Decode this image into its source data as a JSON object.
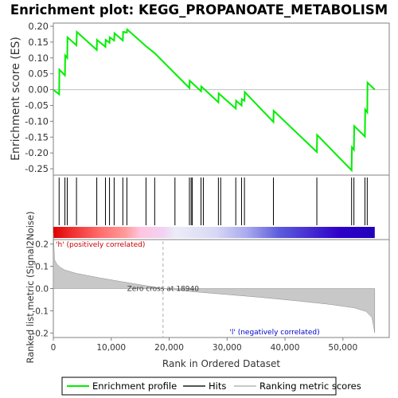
{
  "chart_data": {
    "type": "line",
    "title": "Enrichment plot: KEGG_PROPANOATE_METABOLISM",
    "top_panel": {
      "ylabel": "Enrichment score (ES)",
      "ylim": [
        -0.27,
        0.21
      ],
      "yticks": [
        -0.25,
        -0.2,
        -0.15,
        -0.1,
        -0.05,
        0.0,
        0.05,
        0.1,
        0.15,
        0.2
      ],
      "ytick_labels": [
        "-0.25",
        "-0.20",
        "-0.15",
        "-0.10",
        "-0.05",
        "0.00",
        "0.05",
        "0.10",
        "0.15",
        "0.20"
      ],
      "series": [
        {
          "name": "Enrichment profile",
          "color": "#00ee00",
          "x": [
            0,
            1000,
            1050,
            2000,
            2050,
            2400,
            2450,
            4000,
            4050,
            7500,
            7550,
            9000,
            9050,
            9700,
            9750,
            10500,
            10550,
            12000,
            12050,
            12700,
            12750,
            16000,
            17500,
            23500,
            23550,
            25500,
            25550,
            28500,
            28550,
            31500,
            31550,
            32500,
            32550,
            33000,
            33050,
            38000,
            38050,
            45500,
            45550,
            51500,
            51550,
            51900,
            51950,
            53800,
            53850,
            54200,
            54250,
            55500
          ],
          "y": [
            0.0,
            -0.015,
            0.063,
            0.045,
            0.108,
            0.1,
            0.165,
            0.14,
            0.182,
            0.125,
            0.157,
            0.135,
            0.157,
            0.148,
            0.165,
            0.155,
            0.178,
            0.155,
            0.182,
            0.18,
            0.19,
            0.137,
            0.115,
            0.005,
            0.028,
            -0.005,
            0.01,
            -0.04,
            -0.012,
            -0.06,
            -0.035,
            -0.05,
            -0.03,
            -0.035,
            -0.008,
            -0.102,
            -0.067,
            -0.197,
            -0.143,
            -0.255,
            -0.182,
            -0.19,
            -0.115,
            -0.148,
            -0.063,
            -0.072,
            0.022,
            0.0
          ]
        }
      ]
    },
    "hits": {
      "name": "Hits",
      "x": [
        1000,
        2000,
        2400,
        4000,
        7500,
        9000,
        9700,
        10500,
        12000,
        12700,
        16000,
        17500,
        21000,
        23500,
        23800,
        24000,
        25500,
        25900,
        28500,
        28900,
        31500,
        32500,
        33000,
        38000,
        45500,
        51500,
        51900,
        53800,
        54200
      ]
    },
    "color_bar": {
      "stops": [
        {
          "x": 0,
          "color": "#dd0000"
        },
        {
          "x": 2800,
          "color": "#ee2a2a"
        },
        {
          "x": 8000,
          "color": "#ff6b6b"
        },
        {
          "x": 12500,
          "color": "#ff9b9b"
        },
        {
          "x": 15000,
          "color": "#ffc4e0"
        },
        {
          "x": 19000,
          "color": "#f2d2f2"
        },
        {
          "x": 21000,
          "color": "#ececf8"
        },
        {
          "x": 28000,
          "color": "#d8d8f6"
        },
        {
          "x": 33500,
          "color": "#a8a8ee"
        },
        {
          "x": 39000,
          "color": "#5c5cdc"
        },
        {
          "x": 49500,
          "color": "#2e00c8"
        },
        {
          "x": 55500,
          "color": "#2200bb"
        }
      ]
    },
    "bottom_panel": {
      "ylabel": "Ranked list metric (Signal2Noise)",
      "xlabel": "Rank in Ordered Dataset",
      "ylim": [
        -0.22,
        0.22
      ],
      "yticks": [
        -0.2,
        -0.1,
        0.0,
        0.1,
        0.2
      ],
      "ytick_labels": [
        "-0.2",
        "-0.1",
        "0.0",
        "0.1",
        "0.2"
      ],
      "xlim": [
        0,
        58000
      ],
      "xticks": [
        0,
        10000,
        20000,
        30000,
        40000,
        50000
      ],
      "xtick_labels": [
        "0",
        "10,000",
        "20,000",
        "30,000",
        "40,000",
        "50,000"
      ],
      "metric_curve": {
        "x": [
          0,
          200,
          600,
          1200,
          2000,
          4000,
          8000,
          12000,
          16000,
          18940,
          24000,
          30000,
          36000,
          42000,
          48000,
          52000,
          54000,
          55000,
          55300,
          55500
        ],
        "y": [
          0.25,
          0.13,
          0.11,
          0.095,
          0.083,
          0.068,
          0.048,
          0.03,
          0.013,
          0.0,
          -0.014,
          -0.027,
          -0.04,
          -0.055,
          -0.072,
          -0.087,
          -0.103,
          -0.13,
          -0.17,
          -0.2
        ]
      },
      "positive_label": "'h' (positively correlated)",
      "negative_label": "'l' (negatively correlated)",
      "zero_cross_label": "Zero cross at 18940",
      "zero_cross_x": 18940,
      "positive_color": "#cc0000",
      "negative_color": "#0000cc"
    },
    "legend": {
      "items": [
        {
          "label": "Enrichment profile",
          "color": "#00ee00"
        },
        {
          "label": "Hits",
          "color": "#000000"
        },
        {
          "label": "Ranking metric scores",
          "color": "#c8c8c8"
        }
      ]
    }
  }
}
